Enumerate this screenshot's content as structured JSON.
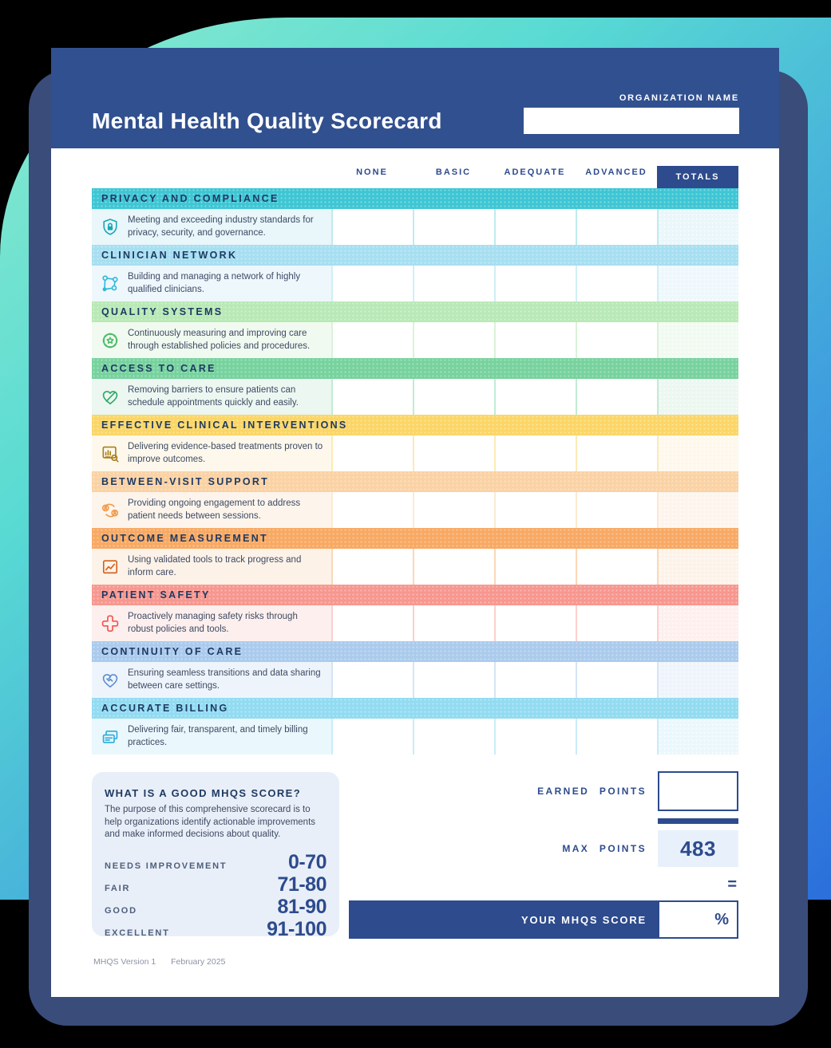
{
  "colors": {
    "canvas-bg": "#000000",
    "gradient-mint": "#8BEBCE",
    "gradient-teal": "#58DAD3",
    "gradient-blue": "#2B6FDB",
    "shadow-navy": "#3A4C7A",
    "header-blue": "#31508F",
    "navy": "#2D4B8D",
    "band-text": "#1F3A63",
    "body-text": "#3D4A63",
    "muted-text": "#8B93A4",
    "guide-card-bg": "#E9EFF8",
    "max-box-bg": "#E8F1FB"
  },
  "header": {
    "title": "Mental Health Quality Scorecard",
    "organization_label": "ORGANIZATION NAME",
    "organization_value": ""
  },
  "table": {
    "rating_columns": [
      "NONE",
      "BASIC",
      "ADEQUATE",
      "ADVANCED"
    ],
    "totals_label": "TOTALS",
    "categories": [
      {
        "name": "PRIVACY AND COMPLIANCE",
        "description": "Meeting and exceeding industry standards for privacy, security, and governance.",
        "icon": "shield-lock-icon",
        "band": "#3EC6D4",
        "tint": "#E9F6FA",
        "line": "#BFEAF0",
        "accent": "#18A7B8"
      },
      {
        "name": "CLINICIAN NETWORK",
        "description": "Building and managing a network of highly qualified clinicians.",
        "icon": "network-nodes-icon",
        "band": "#A6DFF1",
        "tint": "#EEF7FC",
        "line": "#CFEFF8",
        "accent": "#2FB9DB"
      },
      {
        "name": "QUALITY SYSTEMS",
        "description": "Continuously measuring and improving care through established policies and procedures.",
        "icon": "quality-badge-icon",
        "band": "#B9E9B6",
        "tint": "#F1FAF0",
        "line": "#D9F3D7",
        "accent": "#4FBE6C"
      },
      {
        "name": "ACCESS TO CARE",
        "description": "Removing barriers to ensure patients can schedule appointments quickly and easily.",
        "icon": "heart-access-icon",
        "band": "#77D29E",
        "tint": "#EBF7F0",
        "line": "#C2EBD4",
        "accent": "#2EA866"
      },
      {
        "name": "EFFECTIVE CLINICAL INTERVENTIONS",
        "description": "Delivering evidence-based treatments proven to improve outcomes.",
        "icon": "chart-search-icon",
        "band": "#FBD666",
        "tint": "#FDF8EB",
        "line": "#FCEBB5",
        "accent": "#A97E17"
      },
      {
        "name": "BETWEEN-VISIT SUPPORT",
        "description": "Providing ongoing engagement to address patient needs between sessions.",
        "icon": "engagement-loop-icon",
        "band": "#FAD2A5",
        "tint": "#FDF5EC",
        "line": "#FCE9D3",
        "accent": "#F29B4D"
      },
      {
        "name": "OUTCOME MEASUREMENT",
        "description": "Using validated tools to track progress and inform care.",
        "icon": "line-chart-icon",
        "band": "#F8A963",
        "tint": "#FDF2E8",
        "line": "#FBD8B7",
        "accent": "#D2601A"
      },
      {
        "name": "PATIENT SAFETY",
        "description": "Proactively managing safety risks through robust policies and tools.",
        "icon": "medical-cross-icon",
        "band": "#F7978F",
        "tint": "#FDEFED",
        "line": "#FBD0CC",
        "accent": "#EF5350"
      },
      {
        "name": "CONTINUITY OF CARE",
        "description": "Ensuring seamless transitions and data sharing between care settings.",
        "icon": "heart-handshake-icon",
        "band": "#ABCBED",
        "tint": "#EEF4FB",
        "line": "#D4E5F6",
        "accent": "#5B8FD0"
      },
      {
        "name": "ACCURATE BILLING",
        "description": "Delivering fair, transparent, and timely billing practices.",
        "icon": "billing-cards-icon",
        "band": "#92DBF1",
        "tint": "#EAF7FC",
        "line": "#C9EDF8",
        "accent": "#29ABDC"
      }
    ]
  },
  "score_guide": {
    "title": "WHAT IS A GOOD MHQS SCORE?",
    "body": "The purpose of this comprehensive scorecard is to help organizations identify actionable improvements and make informed decisions about quality.",
    "ranges": [
      {
        "label": "NEEDS IMPROVEMENT",
        "value": "0-70"
      },
      {
        "label": "FAIR",
        "value": "71-80"
      },
      {
        "label": "GOOD",
        "value": "81-90"
      },
      {
        "label": "EXCELLENT",
        "value": "91-100"
      }
    ]
  },
  "score_panel": {
    "earned_label": "EARNED POINTS",
    "earned_value": "",
    "max_label": "MAX POINTS",
    "max_value": "483",
    "equals_sign": "=",
    "score_label": "YOUR MHQS SCORE",
    "score_unit": "%",
    "score_value": ""
  },
  "footer": {
    "version": "MHQS Version 1",
    "date": "February 2025"
  }
}
